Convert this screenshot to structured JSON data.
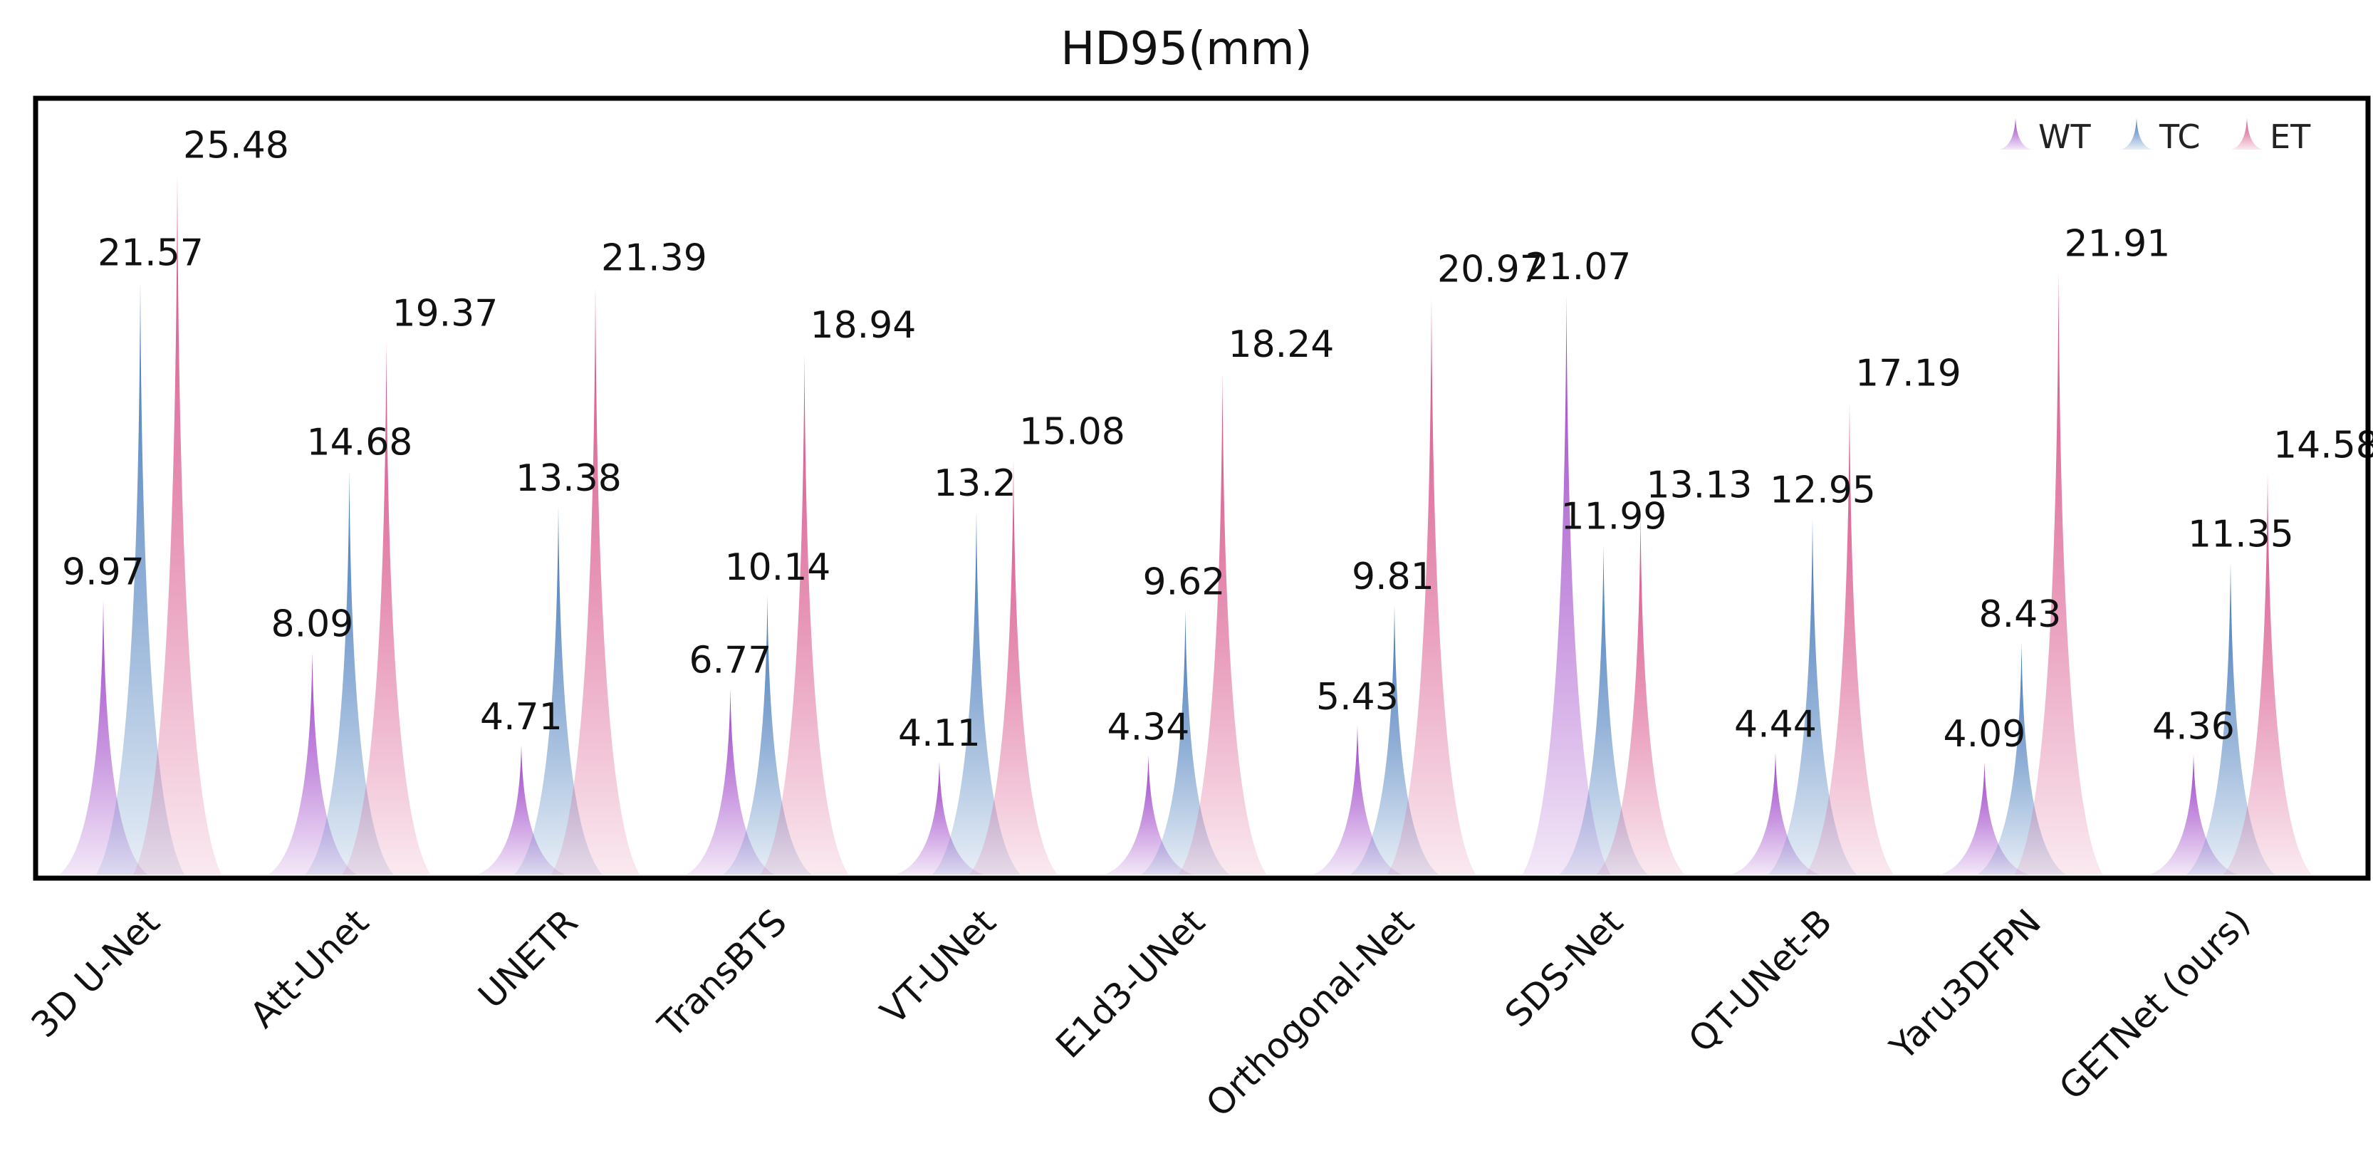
{
  "chart_data": {
    "type": "bar",
    "title": "HD95(mm)",
    "xlabel": "",
    "ylabel": "",
    "ylim": [
      0,
      28
    ],
    "grid": false,
    "legend_position": "top-right",
    "categories": [
      "3D U-Net",
      "Att-Unet",
      "UNETR",
      "TransBTS",
      "VT-UNet",
      "E1d3-UNet",
      "Orthogonal-Net",
      "SDS-Net",
      "QT-UNet-B",
      "Yaru3DFPN",
      "GETNet (ours)"
    ],
    "series": [
      {
        "name": "WT",
        "color": "#9b3fc6",
        "values": [
          9.97,
          8.09,
          4.71,
          6.77,
          4.11,
          4.34,
          5.43,
          21.07,
          4.44,
          4.09,
          4.36
        ]
      },
      {
        "name": "TC",
        "color": "#3e74b8",
        "values": [
          21.57,
          14.68,
          13.38,
          10.14,
          13.2,
          9.62,
          9.81,
          11.99,
          12.95,
          8.43,
          11.35
        ]
      },
      {
        "name": "ET",
        "color": "#d64a83",
        "values": [
          25.48,
          19.37,
          21.39,
          18.94,
          15.08,
          18.24,
          20.97,
          13.13,
          17.19,
          21.91,
          14.58
        ]
      }
    ],
    "value_labels": [
      [
        "9.97",
        "21.57",
        "25.48"
      ],
      [
        "8.09",
        "14.68",
        "19.37"
      ],
      [
        "4.71",
        "13.38",
        "21.39"
      ],
      [
        "6.77",
        "10.14",
        "18.94"
      ],
      [
        "4.11",
        "13.2",
        "15.08"
      ],
      [
        "4.34",
        "9.62",
        "18.24"
      ],
      [
        "5.43",
        "9.81",
        "20.97"
      ],
      [
        "21.07",
        "11.99",
        "13.13"
      ],
      [
        "4.44",
        "12.95",
        "17.19"
      ],
      [
        "4.09",
        "8.43",
        "21.91"
      ],
      [
        "4.36",
        "11.35",
        "14.58"
      ]
    ]
  }
}
